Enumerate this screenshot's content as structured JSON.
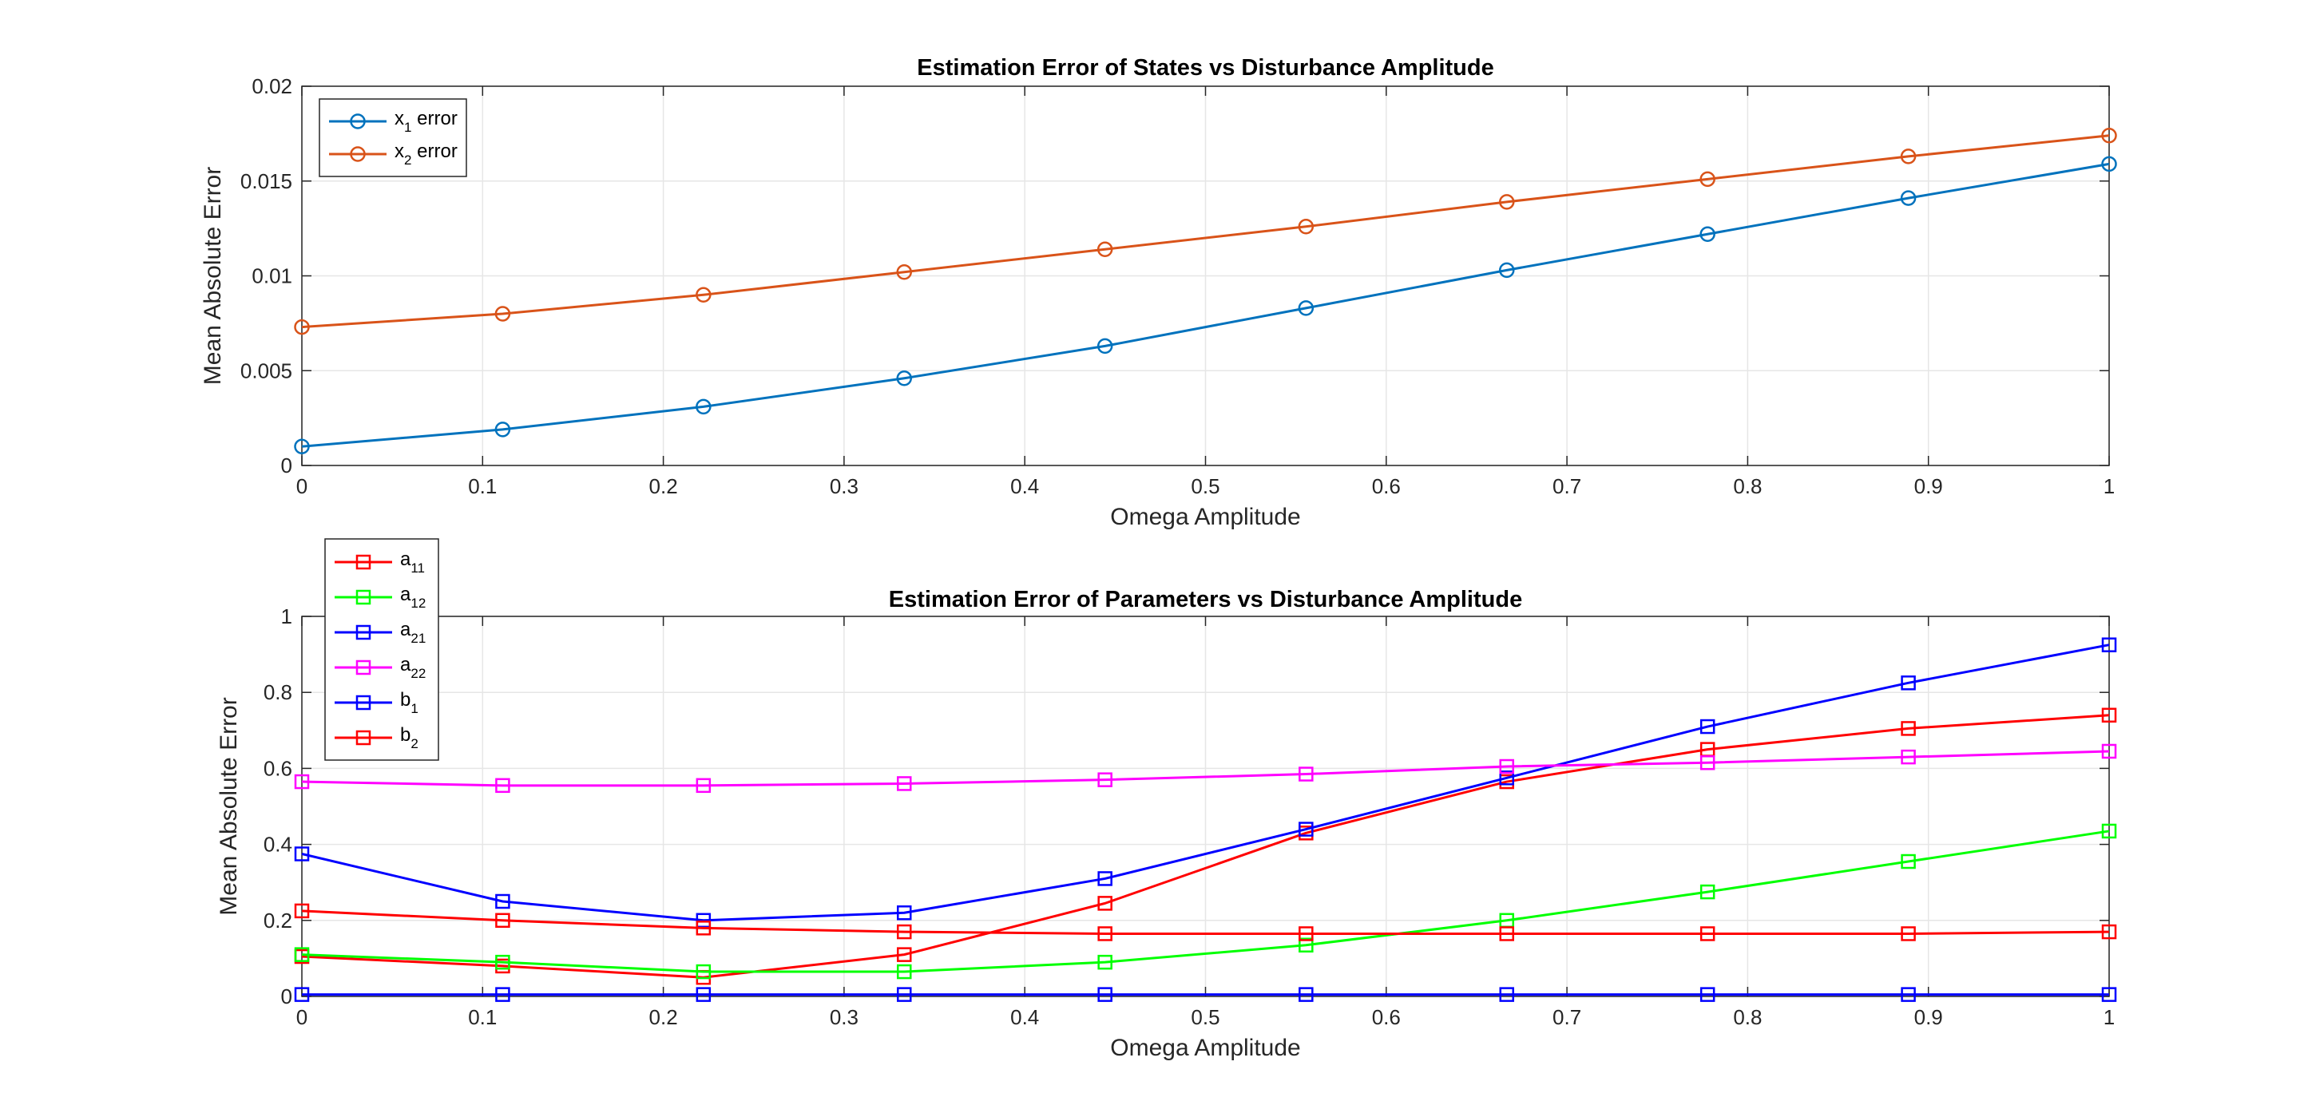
{
  "chart_data": [
    {
      "type": "line",
      "title": "Estimation Error of States vs Disturbance Amplitude",
      "xlabel": "Omega Amplitude",
      "ylabel": "Mean Absolute Error",
      "xlim": [
        0,
        1
      ],
      "ylim": [
        0,
        0.02
      ],
      "xticks": [
        "0",
        "0.1",
        "0.2",
        "0.3",
        "0.4",
        "0.5",
        "0.6",
        "0.7",
        "0.8",
        "0.9",
        "1"
      ],
      "yticks": [
        "0",
        "0.005",
        "0.01",
        "0.015",
        "0.02"
      ],
      "grid": true,
      "legend_placement": "top-left",
      "marker": "circle",
      "x": [
        0,
        0.1111,
        0.2222,
        0.3333,
        0.4444,
        0.5556,
        0.6667,
        0.7778,
        0.8889,
        1
      ],
      "series": [
        {
          "name": "x1 error",
          "base": "x",
          "sub": "1",
          "suffix": " error",
          "color": "#0072BD",
          "values": [
            0.001,
            0.0019,
            0.0031,
            0.0046,
            0.0063,
            0.0083,
            0.0103,
            0.0122,
            0.0141,
            0.0159
          ]
        },
        {
          "name": "x2 error",
          "base": "x",
          "sub": "2",
          "suffix": " error",
          "color": "#D95319",
          "values": [
            0.0073,
            0.008,
            0.009,
            0.0102,
            0.0114,
            0.0126,
            0.0139,
            0.0151,
            0.0163,
            0.0174
          ]
        }
      ]
    },
    {
      "type": "line",
      "title": "Estimation Error of Parameters vs Disturbance Amplitude",
      "xlabel": "Omega Amplitude",
      "ylabel": "Mean Absolute Error",
      "xlim": [
        0,
        1
      ],
      "ylim": [
        0,
        1
      ],
      "xticks": [
        "0",
        "0.1",
        "0.2",
        "0.3",
        "0.4",
        "0.5",
        "0.6",
        "0.7",
        "0.8",
        "0.9",
        "1"
      ],
      "yticks": [
        "0",
        "0.2",
        "0.4",
        "0.6",
        "0.8",
        "1"
      ],
      "grid": true,
      "legend_placement": "top-left",
      "marker": "square",
      "x": [
        0,
        0.1111,
        0.2222,
        0.3333,
        0.4444,
        0.5556,
        0.6667,
        0.7778,
        0.8889,
        1
      ],
      "series": [
        {
          "name": "a11",
          "base": "a",
          "sub": "11",
          "suffix": "",
          "color": "#FF0000",
          "values": [
            0.105,
            0.08,
            0.05,
            0.11,
            0.245,
            0.43,
            0.565,
            0.65,
            0.705,
            0.74
          ]
        },
        {
          "name": "a12",
          "base": "a",
          "sub": "12",
          "suffix": "",
          "color": "#00FF00",
          "values": [
            0.11,
            0.09,
            0.065,
            0.065,
            0.09,
            0.135,
            0.2,
            0.275,
            0.355,
            0.435
          ]
        },
        {
          "name": "a21",
          "base": "a",
          "sub": "21",
          "suffix": "",
          "color": "#0000FF",
          "values": [
            0.375,
            0.25,
            0.2,
            0.22,
            0.31,
            0.44,
            0.575,
            0.71,
            0.825,
            0.925
          ]
        },
        {
          "name": "a22",
          "base": "a",
          "sub": "22",
          "suffix": "",
          "color": "#FF00FF",
          "values": [
            0.565,
            0.555,
            0.555,
            0.56,
            0.57,
            0.585,
            0.605,
            0.615,
            0.63,
            0.645
          ]
        },
        {
          "name": "b1",
          "base": "b",
          "sub": "1",
          "suffix": "",
          "color": "#0000FF",
          "values": [
            0.005,
            0.005,
            0.005,
            0.005,
            0.005,
            0.005,
            0.005,
            0.005,
            0.005,
            0.005
          ]
        },
        {
          "name": "b2",
          "base": "b",
          "sub": "2",
          "suffix": "",
          "color": "#FF0000",
          "values": [
            0.225,
            0.2,
            0.18,
            0.17,
            0.165,
            0.165,
            0.165,
            0.165,
            0.165,
            0.17
          ]
        }
      ]
    }
  ]
}
